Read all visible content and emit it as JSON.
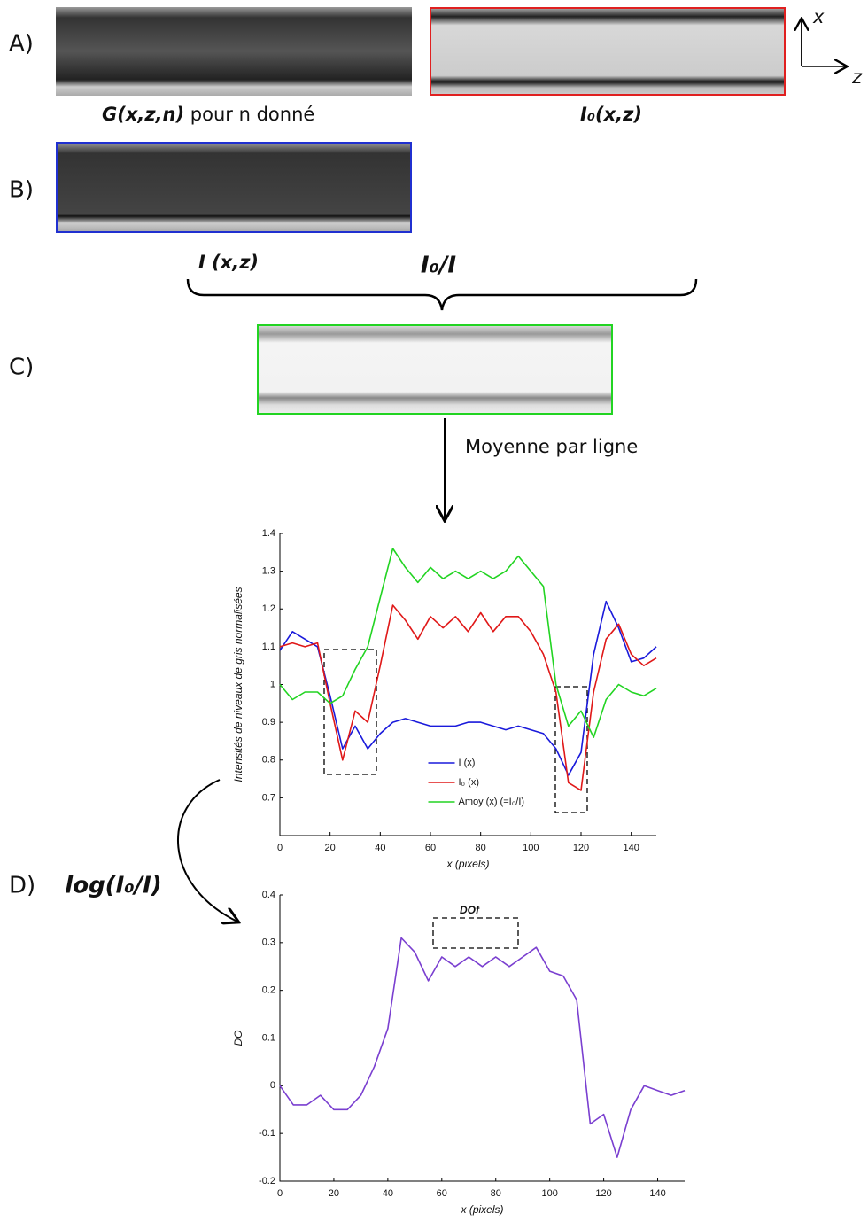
{
  "figure": {
    "panel_a": "A)",
    "panel_b": "B)",
    "panel_c": "C)",
    "panel_d": "D)",
    "caption_g_bold": "G(x,z,n)",
    "caption_g_rest": "pour n donné",
    "caption_i0": "I₀(x,z)",
    "caption_i": "I (x,z)",
    "ratio": "I₀/I",
    "mean_label": "Moyenne par ligne",
    "log_label": "log(I₀/I)",
    "axis_x": "x",
    "axis_z": "z"
  },
  "chart_data": [
    {
      "type": "line",
      "xlabel": "x (pixels)",
      "ylabel": "Intensités de niveaux de gris normalisées",
      "x": [
        0,
        5,
        10,
        15,
        20,
        25,
        30,
        35,
        40,
        45,
        50,
        55,
        60,
        65,
        70,
        75,
        80,
        85,
        90,
        95,
        100,
        105,
        110,
        115,
        120,
        125,
        130,
        135,
        140,
        145,
        150
      ],
      "series": [
        {
          "name": "I (x)",
          "color": "#1a1adb",
          "values": [
            1.09,
            1.14,
            1.12,
            1.1,
            0.97,
            0.83,
            0.89,
            0.83,
            0.87,
            0.9,
            0.91,
            0.9,
            0.89,
            0.89,
            0.89,
            0.9,
            0.9,
            0.89,
            0.88,
            0.89,
            0.88,
            0.87,
            0.83,
            0.76,
            0.82,
            1.08,
            1.22,
            1.15,
            1.06,
            1.07,
            1.1
          ]
        },
        {
          "name": "I₀ (x)",
          "color": "#e01818",
          "values": [
            1.1,
            1.11,
            1.1,
            1.11,
            0.95,
            0.8,
            0.93,
            0.9,
            1.05,
            1.21,
            1.17,
            1.12,
            1.18,
            1.15,
            1.18,
            1.14,
            1.19,
            1.14,
            1.18,
            1.18,
            1.14,
            1.08,
            0.98,
            0.74,
            0.72,
            0.98,
            1.12,
            1.16,
            1.08,
            1.05,
            1.07
          ]
        },
        {
          "name": "Amoy (x) (=I₀/I)",
          "color": "#22d422",
          "values": [
            1.0,
            0.96,
            0.98,
            0.98,
            0.95,
            0.97,
            1.04,
            1.1,
            1.23,
            1.36,
            1.31,
            1.27,
            1.31,
            1.28,
            1.3,
            1.28,
            1.3,
            1.28,
            1.3,
            1.34,
            1.3,
            1.26,
            1.0,
            0.89,
            0.93,
            0.86,
            0.96,
            1.0,
            0.98,
            0.97,
            0.99
          ]
        }
      ],
      "xlim": [
        0,
        150
      ],
      "ylim": [
        0.6,
        1.4
      ],
      "xticks": [
        0,
        20,
        40,
        60,
        80,
        100,
        120,
        140
      ],
      "yticks": [
        0.7,
        0.8,
        0.9,
        1,
        1.1,
        1.2,
        1.3,
        1.4
      ],
      "legend": "lower center"
    },
    {
      "type": "line",
      "xlabel": "x (pixels)",
      "ylabel": "DO",
      "annotation": "DOf",
      "x": [
        0,
        5,
        10,
        15,
        20,
        25,
        30,
        35,
        40,
        45,
        50,
        55,
        60,
        65,
        70,
        75,
        80,
        85,
        90,
        95,
        100,
        105,
        110,
        115,
        120,
        125,
        130,
        135,
        140,
        145,
        150
      ],
      "series": [
        {
          "color": "#7a3fd0",
          "values": [
            0,
            -0.04,
            -0.04,
            -0.02,
            -0.05,
            -0.05,
            -0.02,
            0.04,
            0.12,
            0.31,
            0.28,
            0.22,
            0.27,
            0.25,
            0.27,
            0.25,
            0.27,
            0.25,
            0.27,
            0.29,
            0.24,
            0.23,
            0.18,
            -0.08,
            -0.06,
            -0.15,
            -0.05,
            0,
            -0.01,
            -0.02,
            -0.01
          ]
        }
      ],
      "xlim": [
        0,
        150
      ],
      "ylim": [
        -0.2,
        0.4
      ],
      "xticks": [
        0,
        20,
        40,
        60,
        80,
        100,
        120,
        140
      ],
      "yticks": [
        -0.2,
        -0.1,
        0,
        0.1,
        0.2,
        0.3,
        0.4
      ]
    }
  ]
}
